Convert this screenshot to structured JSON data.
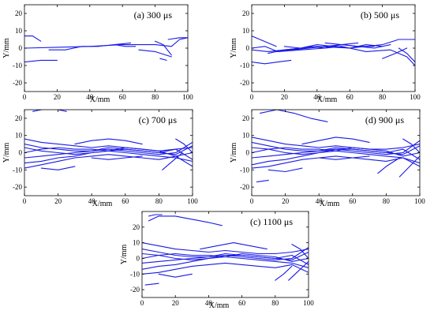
{
  "chart_data": [
    {
      "type": "line",
      "title": "(a) 300 μs",
      "xlabel": "X/mm",
      "ylabel": "Y/mm",
      "xlim": [
        0,
        100
      ],
      "ylim": [
        -25,
        25
      ],
      "xticks": [
        0,
        20,
        40,
        60,
        80,
        100
      ],
      "yticks": [
        -20,
        -10,
        0,
        10,
        20
      ],
      "grid": false,
      "series": [
        {
          "x": [
            0,
            20,
            40,
            60,
            80,
            90,
            95,
            100
          ],
          "y": [
            0,
            0.5,
            1,
            2,
            2,
            1,
            5,
            6
          ]
        },
        {
          "x": [
            0,
            5,
            10
          ],
          "y": [
            7,
            7,
            4
          ]
        },
        {
          "x": [
            0,
            10,
            20
          ],
          "y": [
            -8,
            -7,
            -7
          ]
        },
        {
          "x": [
            15,
            25,
            35,
            45,
            55,
            62,
            68
          ],
          "y": [
            -1,
            -1,
            1,
            1,
            2,
            1,
            1
          ]
        },
        {
          "x": [
            55,
            65
          ],
          "y": [
            2,
            3
          ]
        },
        {
          "x": [
            70,
            80,
            90
          ],
          "y": [
            -1,
            -2,
            -5
          ]
        },
        {
          "x": [
            80,
            85,
            90
          ],
          "y": [
            4,
            2,
            -4
          ]
        },
        {
          "x": [
            83,
            87
          ],
          "y": [
            -6,
            -7
          ]
        },
        {
          "x": [
            88,
            95,
            100
          ],
          "y": [
            5,
            6,
            6
          ]
        }
      ]
    },
    {
      "type": "line",
      "title": "(b) 500 μs",
      "xlabel": "X/mm",
      "ylabel": "Y/mm",
      "xlim": [
        0,
        100
      ],
      "ylim": [
        -25,
        25
      ],
      "xticks": [
        0,
        20,
        40,
        60,
        80,
        100
      ],
      "yticks": [
        -20,
        -10,
        0,
        10,
        20
      ],
      "grid": false,
      "series": [
        {
          "x": [
            0,
            10,
            20,
            40,
            60,
            80,
            90,
            100
          ],
          "y": [
            -1,
            -2,
            -1,
            1,
            0,
            2,
            5,
            5
          ]
        },
        {
          "x": [
            0,
            8,
            16,
            30,
            45,
            55,
            70,
            85,
            95,
            100
          ],
          "y": [
            0,
            1,
            -2,
            -1,
            0,
            1,
            -2,
            -1,
            -5,
            -10
          ]
        },
        {
          "x": [
            0,
            5,
            10,
            15
          ],
          "y": [
            7,
            5,
            3,
            1
          ]
        },
        {
          "x": [
            0,
            8,
            16,
            24
          ],
          "y": [
            -8,
            -9,
            -8,
            -7
          ]
        },
        {
          "x": [
            10,
            20,
            30
          ],
          "y": [
            -3,
            -1,
            0
          ]
        },
        {
          "x": [
            15,
            25,
            35,
            45,
            55,
            65,
            75
          ],
          "y": [
            -2,
            -1,
            0,
            1,
            2,
            1,
            1
          ]
        },
        {
          "x": [
            20,
            30,
            40,
            50,
            60,
            70,
            80
          ],
          "y": [
            1,
            0,
            2,
            1,
            0,
            2,
            1
          ]
        },
        {
          "x": [
            25,
            35,
            45,
            55,
            65,
            75,
            85
          ],
          "y": [
            -1,
            1,
            0,
            2,
            1,
            0,
            2
          ]
        },
        {
          "x": [
            45,
            55,
            65
          ],
          "y": [
            3,
            2,
            3
          ]
        },
        {
          "x": [
            80,
            88,
            95
          ],
          "y": [
            -6,
            -3,
            0
          ]
        },
        {
          "x": [
            90,
            95,
            100
          ],
          "y": [
            0,
            -3,
            -8
          ]
        }
      ]
    },
    {
      "type": "line",
      "title": "(c) 700 μs",
      "xlabel": "X/mm",
      "ylabel": "Y/mm",
      "xlim": [
        0,
        100
      ],
      "ylim": [
        -25,
        25
      ],
      "xticks": [
        0,
        20,
        40,
        60,
        80,
        100
      ],
      "yticks": [
        -20,
        -10,
        0,
        10,
        20
      ],
      "grid": false,
      "series": [
        {
          "x": [
            0,
            10,
            20,
            30,
            40,
            50,
            60,
            70,
            80,
            90,
            100
          ],
          "y": [
            8,
            6,
            5,
            4,
            3,
            4,
            3,
            2,
            1,
            2,
            3
          ]
        },
        {
          "x": [
            0,
            10,
            20,
            30,
            40,
            50,
            60,
            70,
            80,
            90,
            100
          ],
          "y": [
            -9,
            -7,
            -5,
            -3,
            -2,
            -1,
            -2,
            -3,
            -4,
            -2,
            -8
          ]
        },
        {
          "x": [
            0,
            10,
            20,
            30,
            40,
            50,
            60,
            70,
            80,
            90,
            100
          ],
          "y": [
            5,
            3,
            2,
            1,
            1,
            2,
            1,
            0,
            -1,
            0,
            6
          ]
        },
        {
          "x": [
            0,
            10,
            20,
            30,
            40,
            50,
            60,
            70,
            80,
            90,
            100
          ],
          "y": [
            -6,
            -5,
            -3,
            -2,
            0,
            1,
            0,
            -1,
            -2,
            -3,
            -5
          ]
        },
        {
          "x": [
            0,
            10,
            20,
            30,
            40,
            50,
            60,
            70,
            80,
            90,
            100
          ],
          "y": [
            3,
            1,
            0,
            -1,
            0,
            1,
            2,
            1,
            0,
            -1,
            4
          ]
        },
        {
          "x": [
            0,
            10,
            20,
            30,
            40,
            50,
            60,
            70,
            80,
            90,
            100
          ],
          "y": [
            -3,
            -2,
            -1,
            0,
            1,
            3,
            2,
            1,
            0,
            2,
            -4
          ]
        },
        {
          "x": [
            0,
            10,
            20,
            30,
            40,
            50,
            60,
            70,
            80,
            90,
            100
          ],
          "y": [
            0,
            2,
            3,
            2,
            2,
            1,
            3,
            2,
            1,
            -2,
            0
          ]
        },
        {
          "x": [
            5,
            15,
            25
          ],
          "y": [
            24,
            26,
            24
          ]
        },
        {
          "x": [
            30,
            40,
            50,
            60,
            70
          ],
          "y": [
            5,
            7,
            8,
            7,
            5
          ]
        },
        {
          "x": [
            40,
            50,
            60,
            70
          ],
          "y": [
            -3,
            -4,
            -3,
            -2
          ]
        },
        {
          "x": [
            10,
            20,
            30
          ],
          "y": [
            -9,
            -10,
            -8
          ]
        },
        {
          "x": [
            82,
            88,
            94
          ],
          "y": [
            -10,
            -5,
            0
          ]
        },
        {
          "x": [
            90,
            95,
            100
          ],
          "y": [
            8,
            5,
            0
          ]
        }
      ]
    },
    {
      "type": "line",
      "title": "(d) 900 μs",
      "xlabel": "X/mm",
      "ylabel": "Y/mm",
      "xlim": [
        0,
        100
      ],
      "ylim": [
        -25,
        25
      ],
      "xticks": [
        0,
        20,
        40,
        60,
        80,
        100
      ],
      "yticks": [
        -20,
        -10,
        0,
        10,
        20
      ],
      "grid": false,
      "series": [
        {
          "x": [
            0,
            10,
            20,
            30,
            40,
            50,
            60,
            70,
            80,
            90,
            100
          ],
          "y": [
            9,
            7,
            5,
            4,
            3,
            4,
            3,
            2,
            2,
            3,
            5
          ]
        },
        {
          "x": [
            0,
            10,
            20,
            30,
            40,
            50,
            60,
            70,
            80,
            90,
            100
          ],
          "y": [
            -9,
            -8,
            -6,
            -4,
            -3,
            -2,
            -3,
            -4,
            -5,
            -3,
            -8
          ]
        },
        {
          "x": [
            0,
            10,
            20,
            30,
            40,
            50,
            60,
            70,
            80,
            90,
            100
          ],
          "y": [
            6,
            4,
            2,
            1,
            1,
            2,
            1,
            0,
            -1,
            0,
            7
          ]
        },
        {
          "x": [
            0,
            10,
            20,
            30,
            40,
            50,
            60,
            70,
            80,
            90,
            100
          ],
          "y": [
            -7,
            -5,
            -4,
            -2,
            0,
            1,
            0,
            -1,
            -2,
            -3,
            -6
          ]
        },
        {
          "x": [
            0,
            10,
            20,
            30,
            40,
            50,
            60,
            70,
            80,
            90,
            100
          ],
          "y": [
            3,
            2,
            0,
            -1,
            0,
            2,
            2,
            1,
            0,
            -1,
            4
          ]
        },
        {
          "x": [
            0,
            10,
            20,
            30,
            40,
            50,
            60,
            70,
            80,
            90,
            100
          ],
          "y": [
            -3,
            -2,
            -1,
            0,
            1,
            3,
            2,
            1,
            0,
            2,
            -4
          ]
        },
        {
          "x": [
            0,
            10,
            20,
            30,
            40,
            50,
            60,
            70,
            80,
            90,
            100
          ],
          "y": [
            0,
            2,
            3,
            2,
            2,
            1,
            3,
            2,
            1,
            -2,
            0
          ]
        },
        {
          "x": [
            5,
            15,
            25,
            35,
            45
          ],
          "y": [
            23,
            25,
            23,
            20,
            18
          ]
        },
        {
          "x": [
            30,
            40,
            50,
            60,
            70
          ],
          "y": [
            5,
            7,
            9,
            8,
            6
          ]
        },
        {
          "x": [
            40,
            50,
            60,
            70
          ],
          "y": [
            -3,
            -4,
            -3,
            -2
          ]
        },
        {
          "x": [
            10,
            20,
            30
          ],
          "y": [
            -10,
            -11,
            -9
          ]
        },
        {
          "x": [
            3,
            10
          ],
          "y": [
            -17,
            -16
          ]
        },
        {
          "x": [
            75,
            80,
            88
          ],
          "y": [
            -12,
            -8,
            -3
          ]
        },
        {
          "x": [
            88,
            94,
            100
          ],
          "y": [
            -14,
            -8,
            -2
          ]
        },
        {
          "x": [
            90,
            95,
            100
          ],
          "y": [
            8,
            5,
            0
          ]
        }
      ]
    },
    {
      "type": "line",
      "title": "(c) 1100 μs",
      "xlabel": "X/mm",
      "ylabel": "Y/mm",
      "xlim": [
        0,
        100
      ],
      "ylim": [
        -25,
        30
      ],
      "xticks": [
        0,
        20,
        40,
        60,
        80,
        100
      ],
      "yticks": [
        -20,
        -10,
        0,
        10,
        20
      ],
      "grid": false,
      "series": [
        {
          "x": [
            0,
            10,
            20,
            30,
            40,
            50,
            60,
            70,
            80,
            90,
            100
          ],
          "y": [
            10,
            8,
            6,
            5,
            4,
            5,
            4,
            3,
            3,
            4,
            6
          ]
        },
        {
          "x": [
            0,
            10,
            20,
            30,
            40,
            50,
            60,
            70,
            80,
            90,
            100
          ],
          "y": [
            -10,
            -9,
            -7,
            -5,
            -4,
            -3,
            -4,
            -5,
            -6,
            -4,
            -9
          ]
        },
        {
          "x": [
            0,
            10,
            20,
            30,
            40,
            50,
            60,
            70,
            80,
            90,
            100
          ],
          "y": [
            6,
            4,
            2,
            1,
            1,
            2,
            1,
            0,
            -1,
            0,
            7
          ]
        },
        {
          "x": [
            0,
            10,
            20,
            30,
            40,
            50,
            60,
            70,
            80,
            90,
            100
          ],
          "y": [
            -7,
            -5,
            -4,
            -2,
            0,
            1,
            0,
            -1,
            -2,
            -3,
            -6
          ]
        },
        {
          "x": [
            0,
            10,
            20,
            30,
            40,
            50,
            60,
            70,
            80,
            90,
            100
          ],
          "y": [
            3,
            2,
            0,
            -1,
            0,
            2,
            2,
            1,
            0,
            -1,
            4
          ]
        },
        {
          "x": [
            0,
            10,
            20,
            30,
            40,
            50,
            60,
            70,
            80,
            90,
            100
          ],
          "y": [
            -3,
            -2,
            -1,
            0,
            1,
            3,
            2,
            1,
            0,
            2,
            -4
          ]
        },
        {
          "x": [
            0,
            10,
            20,
            30,
            40,
            50,
            60,
            70,
            80,
            90,
            100
          ],
          "y": [
            0,
            2,
            3,
            2,
            2,
            1,
            3,
            2,
            1,
            -2,
            0
          ]
        },
        {
          "x": [
            4,
            10,
            20,
            30,
            40,
            48
          ],
          "y": [
            24,
            27,
            27,
            25,
            23,
            21
          ]
        },
        {
          "x": [
            4,
            8,
            12
          ],
          "y": [
            27,
            28,
            28
          ]
        },
        {
          "x": [
            35,
            45,
            55,
            65,
            75
          ],
          "y": [
            6,
            8,
            10,
            8,
            6
          ]
        },
        {
          "x": [
            10,
            20,
            30
          ],
          "y": [
            -10,
            -12,
            -10
          ]
        },
        {
          "x": [
            2,
            10
          ],
          "y": [
            -17,
            -16
          ]
        },
        {
          "x": [
            80,
            85,
            90
          ],
          "y": [
            -14,
            -10,
            -5
          ]
        },
        {
          "x": [
            88,
            94,
            100
          ],
          "y": [
            -14,
            -8,
            -2
          ]
        },
        {
          "x": [
            90,
            95,
            100
          ],
          "y": [
            9,
            6,
            0
          ]
        }
      ]
    }
  ]
}
